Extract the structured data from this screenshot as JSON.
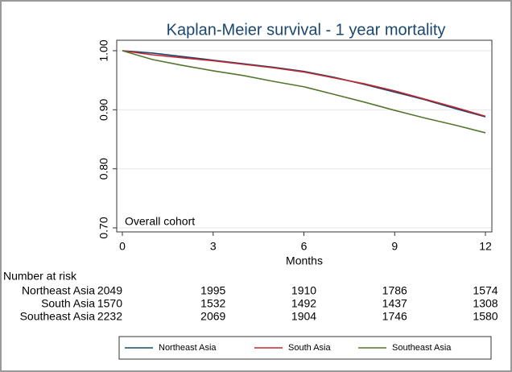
{
  "chart_data": {
    "type": "line",
    "title": "Kaplan-Meier survival - 1 year mortality",
    "xlabel": "Months",
    "annotation": "Overall cohort",
    "x": [
      0,
      1,
      2,
      3,
      4,
      5,
      6,
      7,
      8,
      9,
      10,
      11,
      12
    ],
    "xlim": [
      0,
      12
    ],
    "xticks": [
      0,
      3,
      6,
      9,
      12
    ],
    "ylim": [
      0.7,
      1.0
    ],
    "yticks": [
      {
        "value": 0.7,
        "label": "0.70"
      },
      {
        "value": 0.8,
        "label": "0.80"
      },
      {
        "value": 0.9,
        "label": "0.90"
      },
      {
        "value": 1.0,
        "label": "1.00"
      }
    ],
    "grid": true,
    "series": [
      {
        "name": "Northeast Asia",
        "color": "#1a476f",
        "values": [
          1.0,
          0.996,
          0.99,
          0.984,
          0.978,
          0.972,
          0.965,
          0.955,
          0.943,
          0.93,
          0.917,
          0.902,
          0.888
        ]
      },
      {
        "name": "South Asia",
        "color": "#c4262e",
        "values": [
          1.0,
          0.993,
          0.988,
          0.983,
          0.977,
          0.971,
          0.964,
          0.954,
          0.944,
          0.932,
          0.918,
          0.904,
          0.889
        ]
      },
      {
        "name": "Southeast Asia",
        "color": "#55752f",
        "values": [
          1.0,
          0.985,
          0.975,
          0.966,
          0.958,
          0.948,
          0.939,
          0.926,
          0.913,
          0.899,
          0.886,
          0.874,
          0.861
        ]
      }
    ],
    "risk_table": {
      "title": "Number at risk",
      "rows": [
        {
          "name": "Northeast Asia",
          "values": [
            2049,
            1995,
            1910,
            1786,
            1574
          ]
        },
        {
          "name": "South Asia",
          "values": [
            1570,
            1532,
            1492,
            1437,
            1308
          ]
        },
        {
          "name": "Southeast Asia",
          "values": [
            2232,
            2069,
            1904,
            1746,
            1580
          ]
        }
      ]
    }
  }
}
